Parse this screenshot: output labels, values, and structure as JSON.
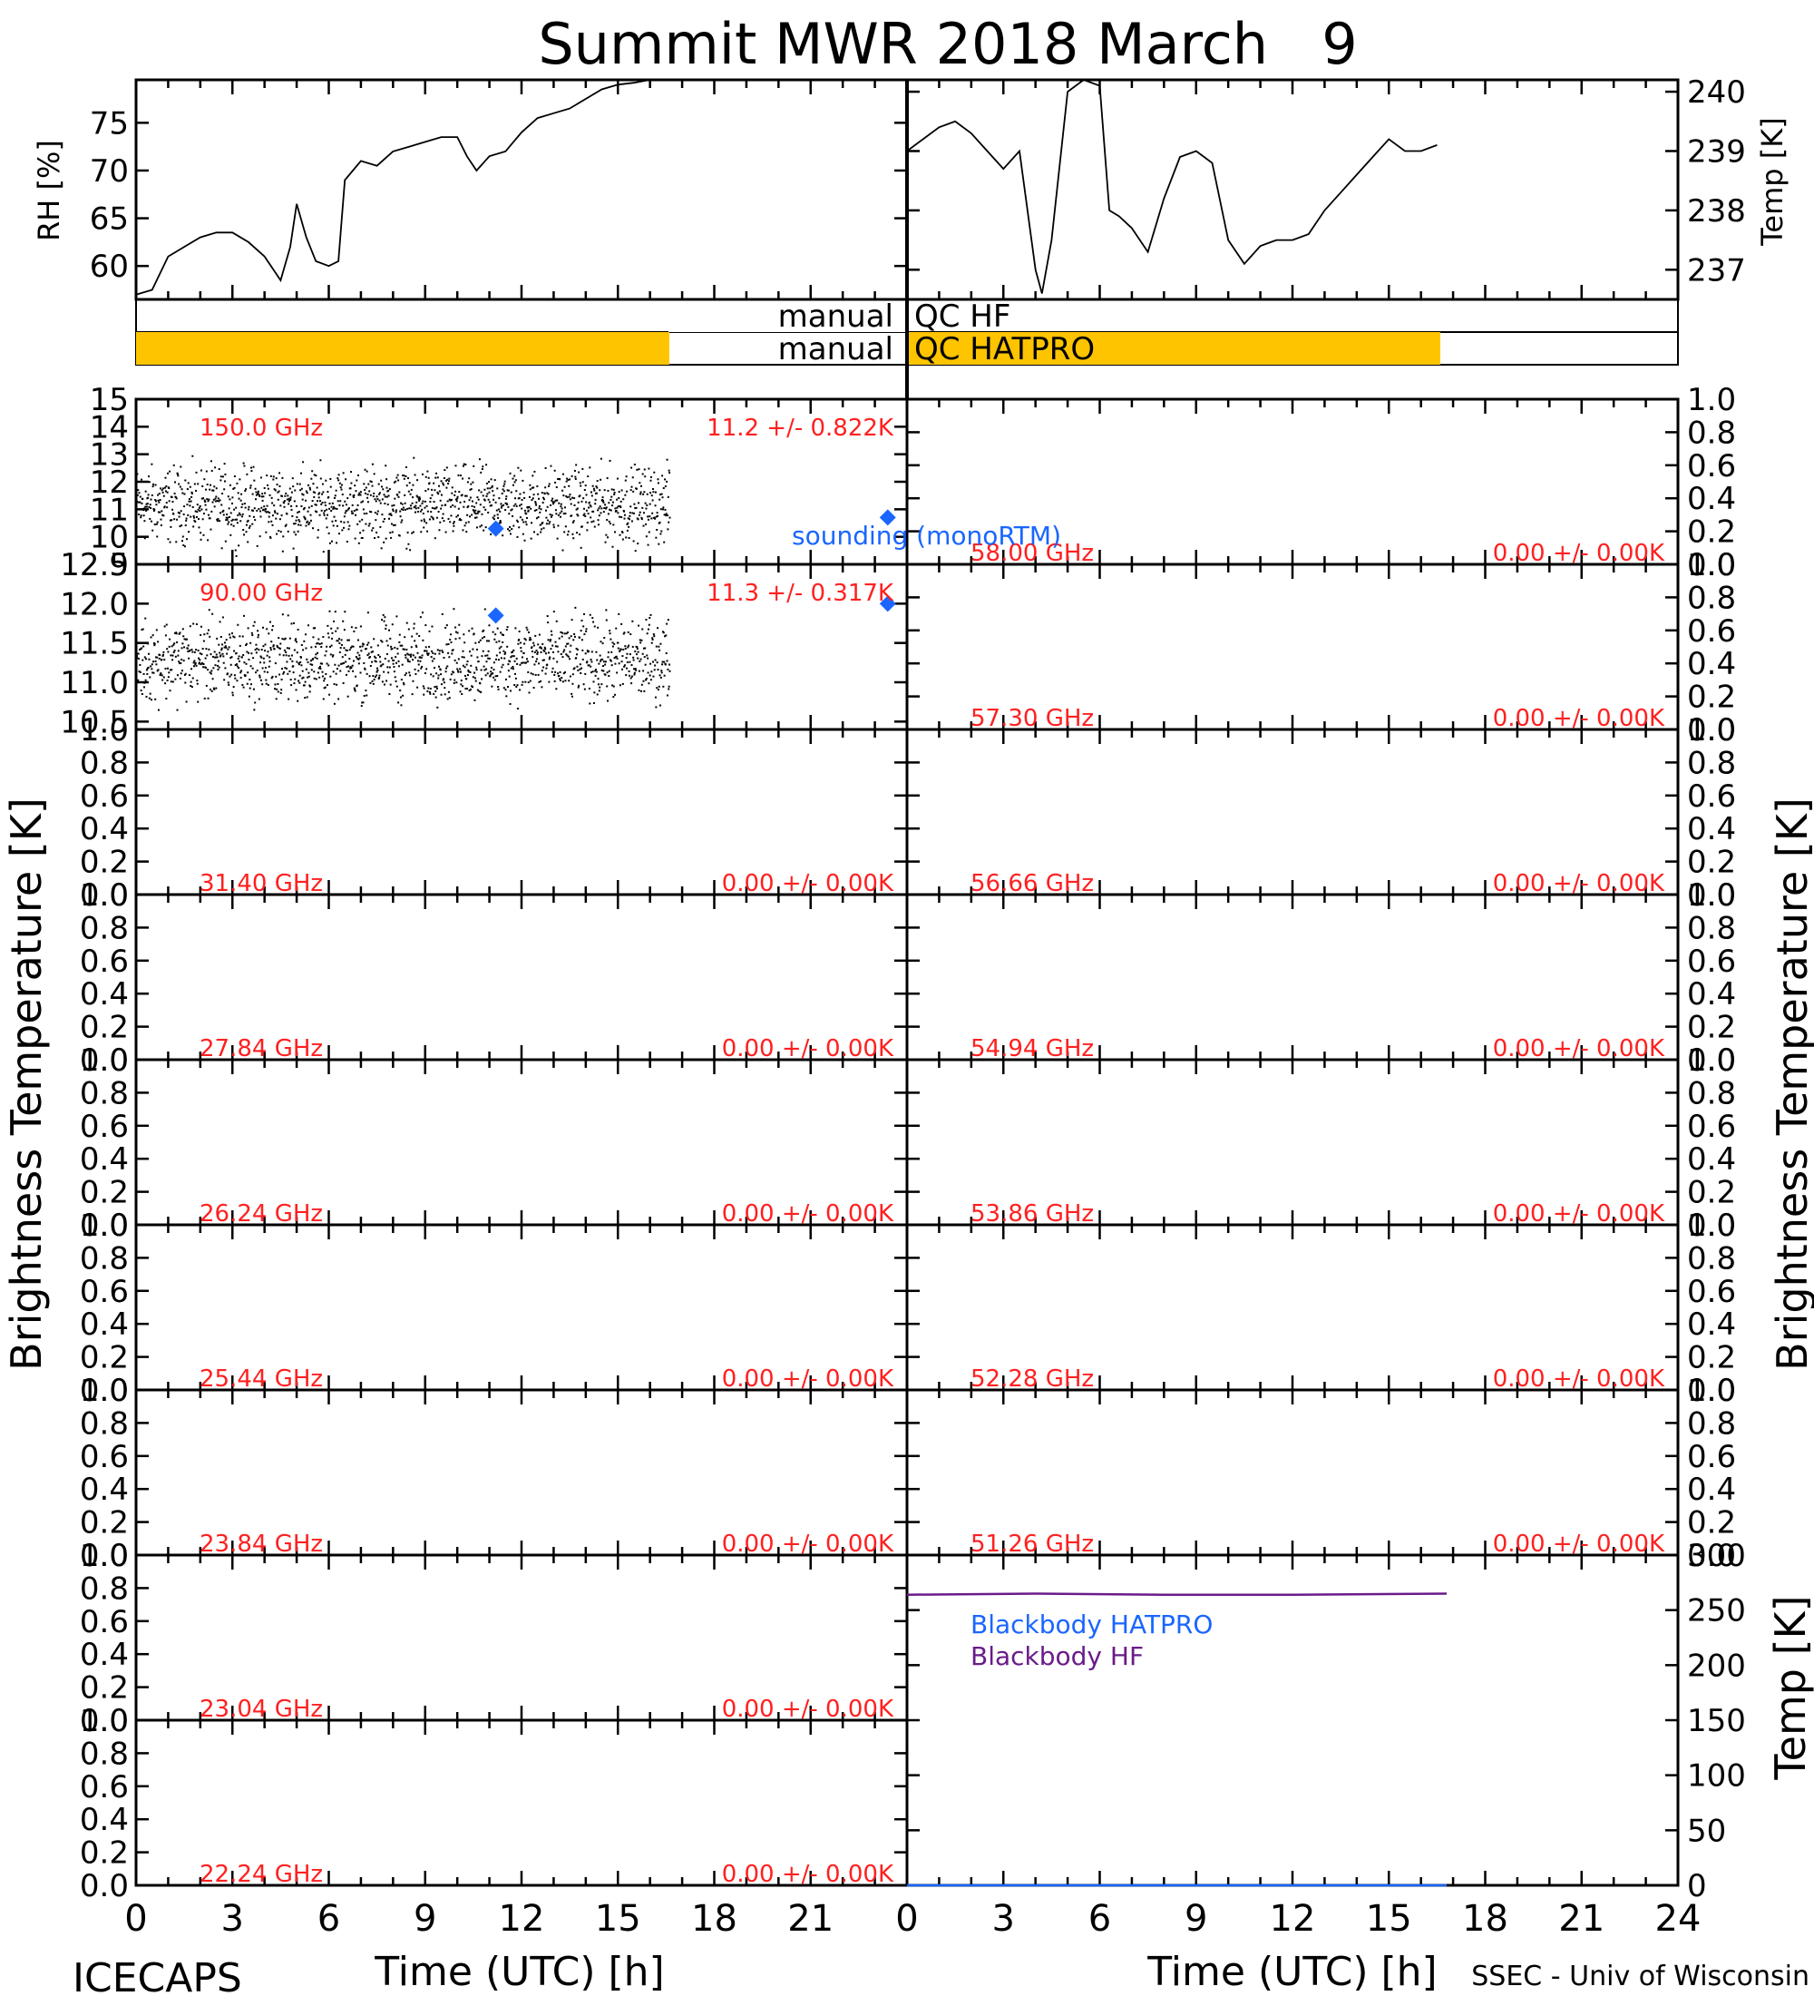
{
  "title": "Summit MWR 2018 March   9",
  "footer": {
    "left": "ICECAPS",
    "right": "SSEC - Univ of Wisconsin",
    "xlabel_left": "Time (UTC) [h]",
    "xlabel_right": "Time (UTC) [h]"
  },
  "axis_titles": {
    "rh": "RH [%]",
    "temp": "Temp [K]",
    "brightness_left": "Brightness Temperature [K]",
    "brightness_right": "Brightness Temperature [K]",
    "bb_temp": "Temp [K]"
  },
  "qc": {
    "hf_label": "manual",
    "hf_name": "QC HF",
    "hatpro_label": "manual",
    "hatpro_name": "QC HATPRO",
    "qc_color": "#ffc400"
  },
  "legend": {
    "sounding": "sounding (monoRTM)",
    "bb_hatpro": "Blackbody HATPRO",
    "bb_hf": "Blackbody HF"
  },
  "colors": {
    "text_red": "#ff2020",
    "sounding_blue": "#1a66ff",
    "bb_hatpro": "#1a66ff",
    "bb_hf": "#6a1b8a"
  },
  "chart_data": [
    {
      "id": "rh",
      "type": "line",
      "ylabel": "RH [%]",
      "ylim": [
        56.5,
        79.5
      ],
      "yticks": [
        "60",
        "65",
        "70",
        "75"
      ],
      "xlim": [
        0,
        24
      ],
      "x": [
        0,
        0.5,
        1,
        1.5,
        2,
        2.5,
        3,
        3.5,
        4,
        4.5,
        4.8,
        5,
        5.3,
        5.6,
        6,
        6.3,
        6.5,
        7,
        7.5,
        8,
        8.5,
        9,
        9.5,
        10,
        10.3,
        10.6,
        11,
        11.5,
        12,
        12.5,
        13,
        13.5,
        14,
        14.5,
        15,
        15.5,
        16,
        16.5
      ],
      "y": [
        57,
        57.5,
        61,
        62,
        63,
        63.5,
        63.5,
        62.5,
        61,
        58.5,
        62,
        66.5,
        63,
        60.5,
        60,
        60.5,
        69,
        71,
        70.5,
        72,
        72.5,
        73,
        73.5,
        73.5,
        71.5,
        70,
        71.5,
        72,
        74,
        75.5,
        76,
        76.5,
        77.5,
        78.5,
        79,
        79.2,
        79.5,
        79.5
      ]
    },
    {
      "id": "temp",
      "type": "line",
      "ylabel": "Temp [K]",
      "ylim": [
        236.5,
        240.2
      ],
      "yticks": [
        "237",
        "238",
        "239",
        "240"
      ],
      "xlim": [
        0,
        24
      ],
      "x": [
        0,
        0.5,
        1,
        1.5,
        2,
        2.5,
        3,
        3.5,
        4,
        4.2,
        4.5,
        5,
        5.5,
        6,
        6.3,
        6.6,
        7,
        7.5,
        8,
        8.5,
        9,
        9.5,
        10,
        10.5,
        11,
        11.5,
        12,
        12.5,
        13,
        13.5,
        14,
        14.5,
        15,
        15.5,
        16,
        16.5
      ],
      "y": [
        239,
        239.2,
        239.4,
        239.5,
        239.3,
        239.0,
        238.7,
        239.0,
        237.0,
        236.6,
        237.5,
        240,
        240.2,
        240.1,
        238.0,
        237.9,
        237.7,
        237.3,
        238.2,
        238.9,
        239.0,
        238.8,
        237.5,
        237.1,
        237.4,
        237.5,
        237.5,
        237.6,
        238.0,
        238.3,
        238.6,
        238.9,
        239.2,
        239.0,
        239.0,
        239.1
      ]
    },
    {
      "id": "ch150",
      "type": "scatter",
      "freq_label": "150.0 GHz",
      "stat_label": "11.2 +/- 0.822K",
      "ylim": [
        9,
        15
      ],
      "yticks": [
        "9",
        "10",
        "11",
        "12",
        "13",
        "14",
        "15"
      ],
      "xlim": [
        0,
        24
      ],
      "mean": 11.2,
      "spread": 0.822,
      "data_end_hour": 16.6,
      "sounding": [
        {
          "x": 11.2,
          "y": 10.3
        },
        {
          "x": 23.4,
          "y": 10.7
        }
      ]
    },
    {
      "id": "ch90",
      "type": "scatter",
      "freq_label": "90.00 GHz",
      "stat_label": "11.3 +/- 0.317K",
      "ylim": [
        10.4,
        12.5
      ],
      "yticks": [
        "10.5",
        "11.0",
        "11.5",
        "12.0",
        "12.5"
      ],
      "xlim": [
        0,
        24
      ],
      "mean": 11.3,
      "spread": 0.317,
      "data_end_hour": 16.6,
      "sounding": [
        {
          "x": 11.2,
          "y": 11.85
        },
        {
          "x": 23.4,
          "y": 12.0
        }
      ]
    },
    {
      "id": "ch3140",
      "type": "line",
      "freq_label": "31.40 GHz",
      "stat_label": "0.00 +/- 0.00K",
      "ylim": [
        0,
        1
      ],
      "yticks": [
        "0.0",
        "0.2",
        "0.4",
        "0.6",
        "0.8",
        "1.0"
      ]
    },
    {
      "id": "ch2784",
      "type": "line",
      "freq_label": "27.84 GHz",
      "stat_label": "0.00 +/- 0.00K",
      "ylim": [
        0,
        1
      ],
      "yticks": [
        "0.0",
        "0.2",
        "0.4",
        "0.6",
        "0.8",
        "1.0"
      ]
    },
    {
      "id": "ch2624",
      "type": "line",
      "freq_label": "26.24 GHz",
      "stat_label": "0.00 +/- 0.00K",
      "ylim": [
        0,
        1
      ],
      "yticks": [
        "0.0",
        "0.2",
        "0.4",
        "0.6",
        "0.8",
        "1.0"
      ]
    },
    {
      "id": "ch2544",
      "type": "line",
      "freq_label": "25.44 GHz",
      "stat_label": "0.00 +/- 0.00K",
      "ylim": [
        0,
        1
      ],
      "yticks": [
        "0.0",
        "0.2",
        "0.4",
        "0.6",
        "0.8",
        "1.0"
      ]
    },
    {
      "id": "ch2384",
      "type": "line",
      "freq_label": "23.84 GHz",
      "stat_label": "0.00 +/- 0.00K",
      "ylim": [
        0,
        1
      ],
      "yticks": [
        "0.0",
        "0.2",
        "0.4",
        "0.6",
        "0.8",
        "1.0"
      ]
    },
    {
      "id": "ch2304",
      "type": "line",
      "freq_label": "23.04 GHz",
      "stat_label": "0.00 +/- 0.00K",
      "ylim": [
        0,
        1
      ],
      "yticks": [
        "0.0",
        "0.2",
        "0.4",
        "0.6",
        "0.8",
        "1.0"
      ]
    },
    {
      "id": "ch2224",
      "type": "line",
      "freq_label": "22.24 GHz",
      "stat_label": "0.00 +/- 0.00K",
      "ylim": [
        0,
        1
      ],
      "yticks": [
        "0.0",
        "0.2",
        "0.4",
        "0.6",
        "0.8",
        "1.0"
      ]
    },
    {
      "id": "ch5800",
      "type": "line",
      "freq_label": "58.00 GHz",
      "stat_label": "0.00 +/- 0.00K",
      "ylim": [
        0,
        1
      ],
      "yticks": [
        "0.0",
        "0.2",
        "0.4",
        "0.6",
        "0.8",
        "1.0"
      ]
    },
    {
      "id": "ch5730",
      "type": "line",
      "freq_label": "57.30 GHz",
      "stat_label": "0.00 +/- 0.00K",
      "ylim": [
        0,
        1
      ],
      "yticks": [
        "0.0",
        "0.2",
        "0.4",
        "0.6",
        "0.8",
        "1.0"
      ]
    },
    {
      "id": "ch5666",
      "type": "line",
      "freq_label": "56.66 GHz",
      "stat_label": "0.00 +/- 0.00K",
      "ylim": [
        0,
        1
      ],
      "yticks": [
        "0.0",
        "0.2",
        "0.4",
        "0.6",
        "0.8",
        "1.0"
      ]
    },
    {
      "id": "ch5494",
      "type": "line",
      "freq_label": "54.94 GHz",
      "stat_label": "0.00 +/- 0.00K",
      "ylim": [
        0,
        1
      ],
      "yticks": [
        "0.0",
        "0.2",
        "0.4",
        "0.6",
        "0.8",
        "1.0"
      ]
    },
    {
      "id": "ch5386",
      "type": "line",
      "freq_label": "53.86 GHz",
      "stat_label": "0.00 +/- 0.00K",
      "ylim": [
        0,
        1
      ],
      "yticks": [
        "0.0",
        "0.2",
        "0.4",
        "0.6",
        "0.8",
        "1.0"
      ]
    },
    {
      "id": "ch5228",
      "type": "line",
      "freq_label": "52.28 GHz",
      "stat_label": "0.00 +/- 0.00K",
      "ylim": [
        0,
        1
      ],
      "yticks": [
        "0.0",
        "0.2",
        "0.4",
        "0.6",
        "0.8",
        "1.0"
      ]
    },
    {
      "id": "ch5126",
      "type": "line",
      "freq_label": "51.26 GHz",
      "stat_label": "0.00 +/- 0.00K",
      "ylim": [
        0,
        1
      ],
      "yticks": [
        "0.0",
        "0.2",
        "0.4",
        "0.6",
        "0.8",
        "1.0"
      ]
    },
    {
      "id": "blackbody",
      "type": "line",
      "ylabel": "Temp [K]",
      "ylim": [
        0,
        300
      ],
      "yticks": [
        "0",
        "50",
        "100",
        "150",
        "200",
        "250",
        "300"
      ],
      "xlim": [
        0,
        24
      ],
      "series": [
        {
          "name": "Blackbody HATPRO",
          "x": [
            0,
            16.8
          ],
          "y": [
            0,
            0
          ]
        },
        {
          "name": "Blackbody HF",
          "x": [
            0,
            4,
            8,
            12,
            16.8
          ],
          "y": [
            264,
            265,
            264,
            264,
            265
          ]
        }
      ]
    }
  ],
  "xticks": [
    "0",
    "3",
    "6",
    "9",
    "12",
    "15",
    "18",
    "21"
  ],
  "xticks_right": [
    "0",
    "3",
    "6",
    "9",
    "12",
    "15",
    "18",
    "21",
    "24"
  ]
}
